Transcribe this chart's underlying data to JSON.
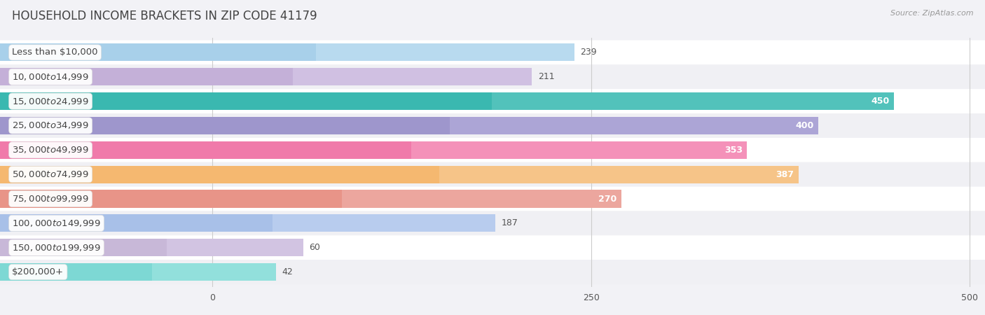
{
  "title": "HOUSEHOLD INCOME BRACKETS IN ZIP CODE 41179",
  "source": "Source: ZipAtlas.com",
  "categories": [
    "Less than $10,000",
    "$10,000 to $14,999",
    "$15,000 to $24,999",
    "$25,000 to $34,999",
    "$35,000 to $49,999",
    "$50,000 to $74,999",
    "$75,000 to $99,999",
    "$100,000 to $149,999",
    "$150,000 to $199,999",
    "$200,000+"
  ],
  "values": [
    239,
    211,
    450,
    400,
    353,
    387,
    270,
    187,
    60,
    42
  ],
  "bar_colors": [
    "#a8d0ea",
    "#c4b0d8",
    "#3ab8b0",
    "#9e96cc",
    "#f07aaa",
    "#f5b870",
    "#e89488",
    "#a8c0e8",
    "#c8b8d8",
    "#7dd8d4"
  ],
  "bar_fade_colors": [
    "#c8e4f4",
    "#ddd0ec",
    "#6accc6",
    "#bbb4e0",
    "#f8a8c8",
    "#f8d0a0",
    "#f0b8b4",
    "#c8d8f4",
    "#ddd0ec",
    "#a8e8e4"
  ],
  "row_colors": [
    "#ffffff",
    "#f0f0f4"
  ],
  "xlim": [
    -140,
    510
  ],
  "xticks": [
    0,
    250,
    500
  ],
  "background_color": "#f2f2f6",
  "title_fontsize": 12,
  "label_fontsize": 9.5,
  "value_fontsize": 9,
  "bar_height": 0.72,
  "value_threshold": 250
}
